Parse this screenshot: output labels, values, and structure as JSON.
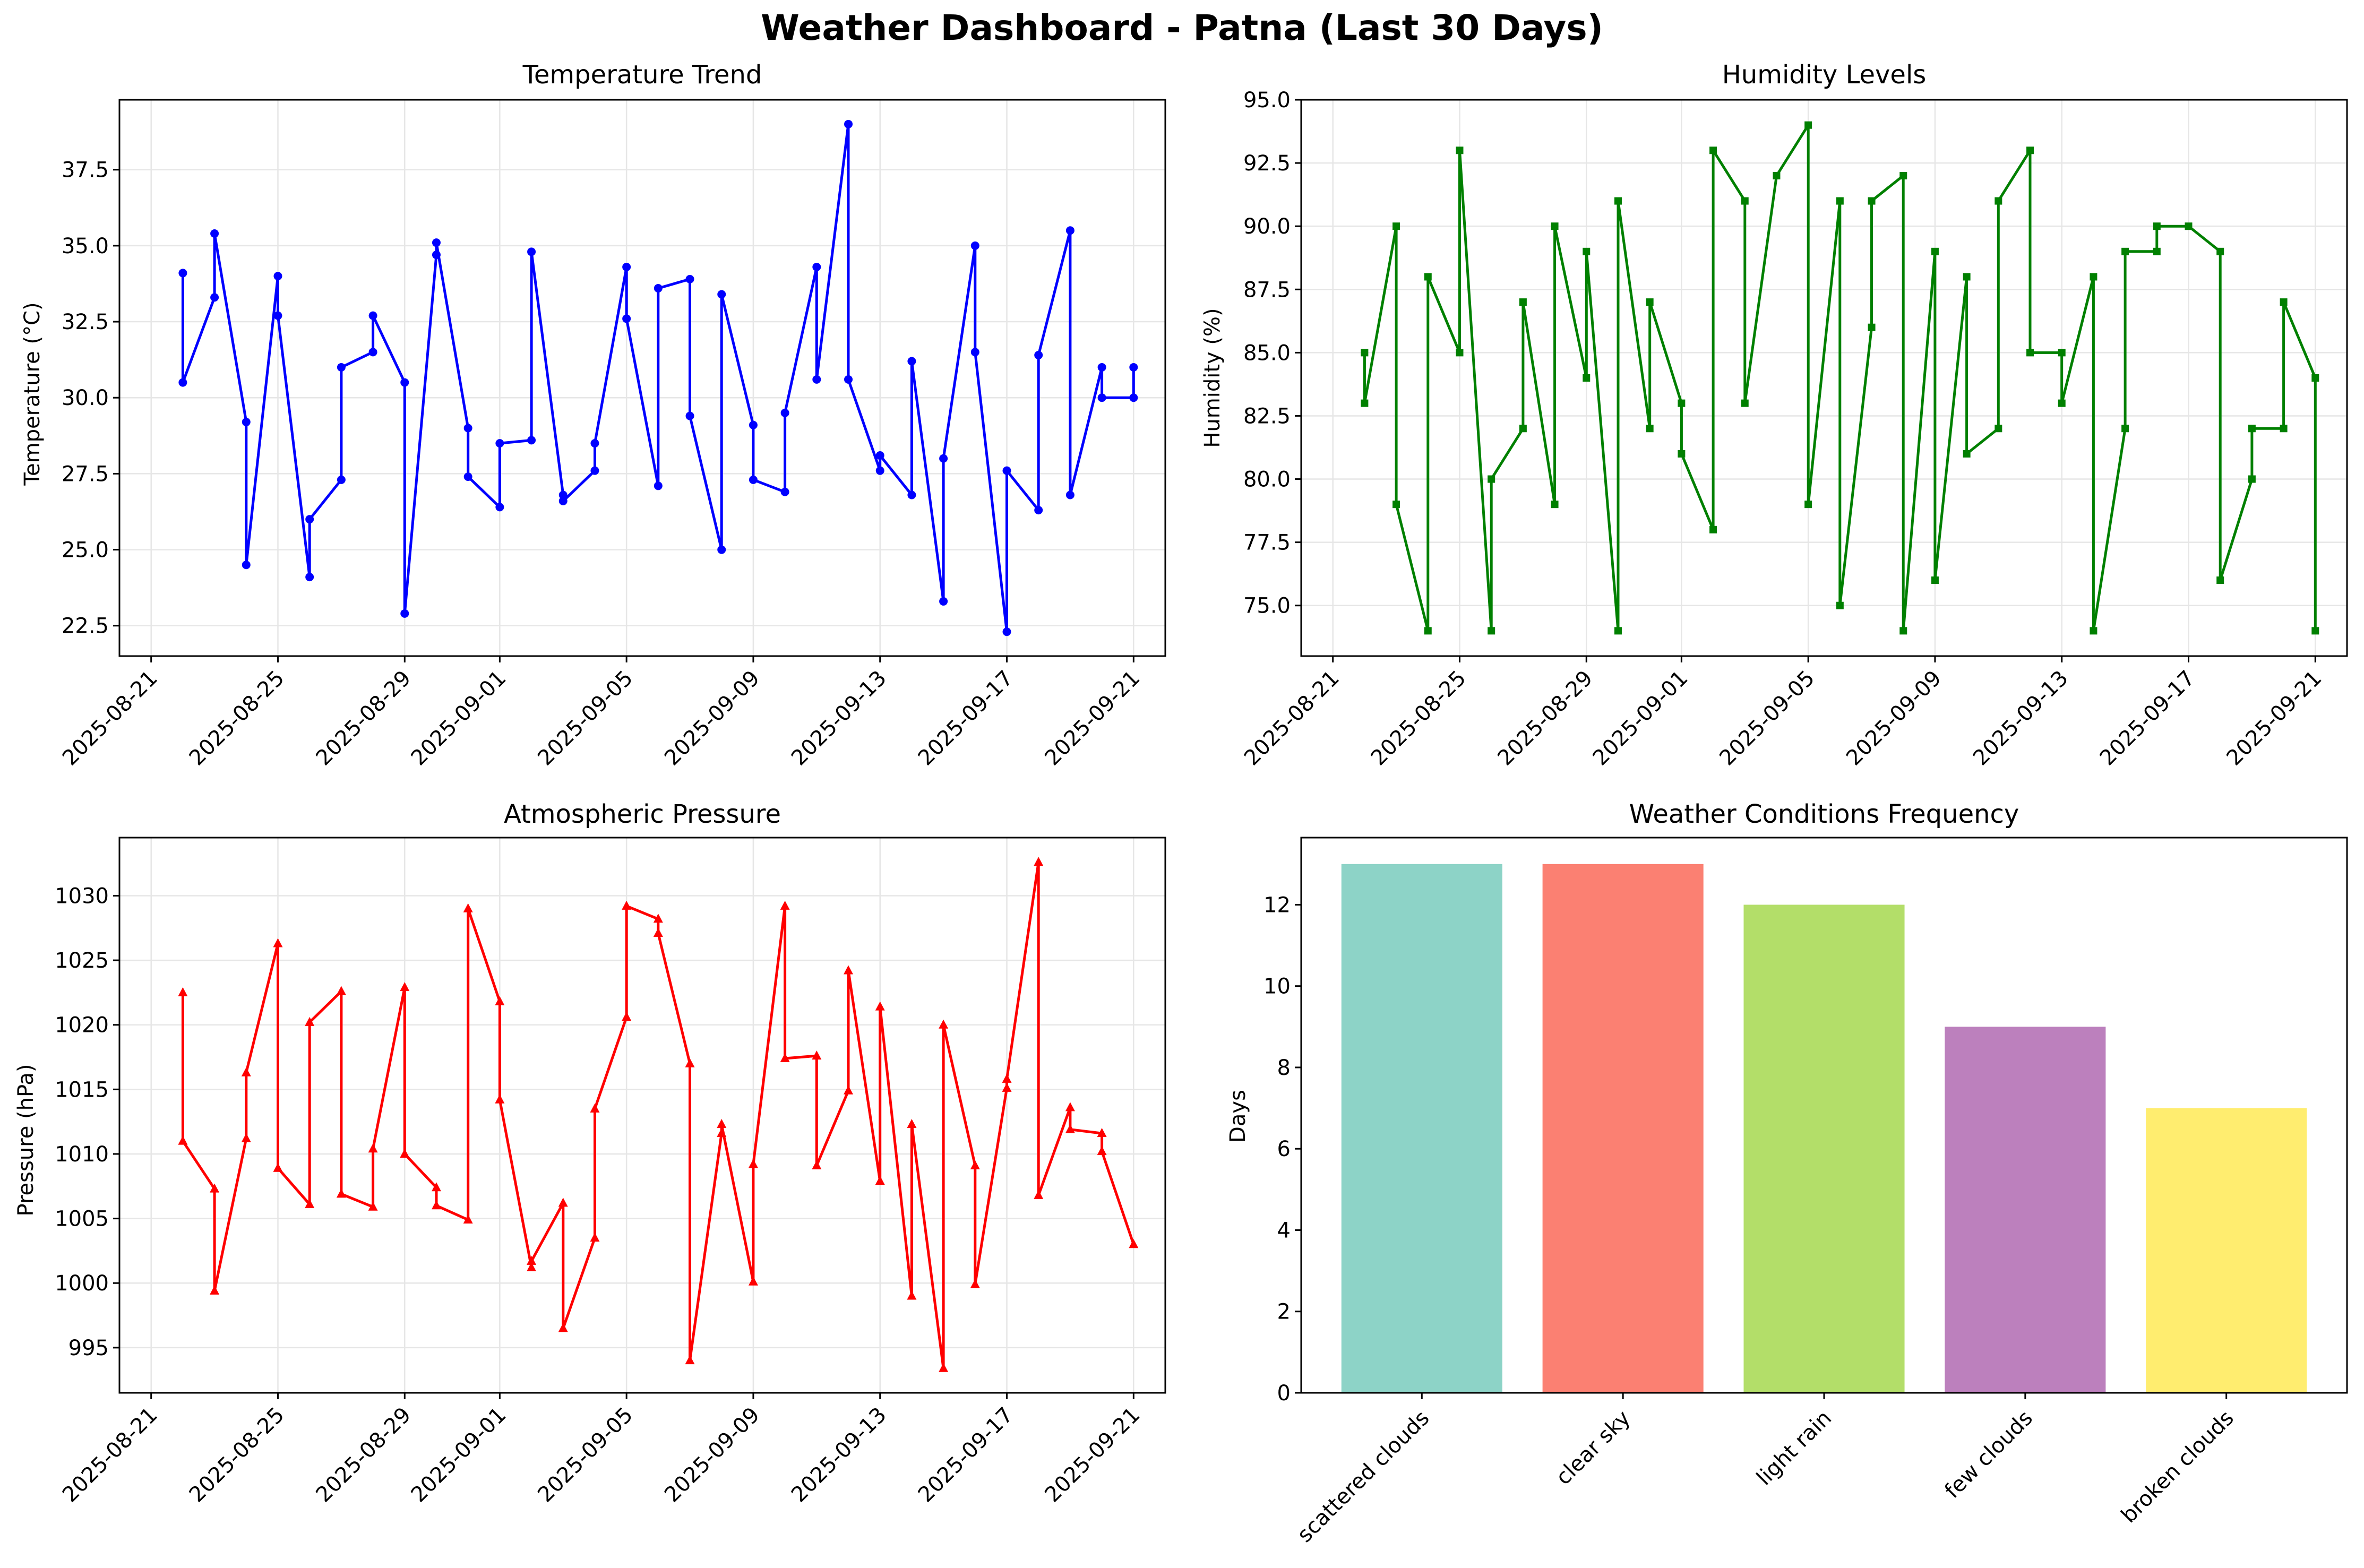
{
  "title": "Weather Dashboard - Patna (Last 30 Days)",
  "colors": {
    "temperature": "#0000ff",
    "humidity": "#008000",
    "pressure": "#ff0000",
    "bars": [
      "#8dd3c7",
      "#fb8072",
      "#b3de69",
      "#bc80bd",
      "#ffed6f"
    ],
    "grid": "#e6e6e6"
  },
  "chart_data": [
    {
      "type": "line",
      "title": "Temperature Trend",
      "xlabel": "",
      "ylabel": "Temperature (°C)",
      "marker": "circle",
      "grid": true,
      "xlim": [
        "2025-08-20",
        "2025-09-22"
      ],
      "ylim": [
        21.5,
        39.8
      ],
      "x_ticks": [
        "2025-08-21",
        "2025-08-25",
        "2025-08-29",
        "2025-09-01",
        "2025-09-05",
        "2025-09-09",
        "2025-09-13",
        "2025-09-17",
        "2025-09-21"
      ],
      "y_ticks": [
        22.5,
        25.0,
        27.5,
        30.0,
        32.5,
        35.0,
        37.5
      ],
      "y_tick_labels": [
        "22.5",
        "25.0",
        "27.5",
        "30.0",
        "32.5",
        "35.0",
        "37.5"
      ],
      "points": [
        [
          "2025-08-22",
          34.1
        ],
        [
          "2025-08-22",
          30.5
        ],
        [
          "2025-08-23",
          33.3
        ],
        [
          "2025-08-23",
          35.4
        ],
        [
          "2025-08-24",
          29.2
        ],
        [
          "2025-08-24",
          24.5
        ],
        [
          "2025-08-25",
          34.0
        ],
        [
          "2025-08-25",
          32.7
        ],
        [
          "2025-08-26",
          24.1
        ],
        [
          "2025-08-26",
          26.0
        ],
        [
          "2025-08-27",
          27.3
        ],
        [
          "2025-08-27",
          31.0
        ],
        [
          "2025-08-28",
          31.5
        ],
        [
          "2025-08-28",
          32.7
        ],
        [
          "2025-08-29",
          30.5
        ],
        [
          "2025-08-29",
          22.9
        ],
        [
          "2025-08-30",
          34.7
        ],
        [
          "2025-08-30",
          35.1
        ],
        [
          "2025-08-31",
          29.0
        ],
        [
          "2025-08-31",
          27.4
        ],
        [
          "2025-09-01",
          26.4
        ],
        [
          "2025-09-01",
          28.5
        ],
        [
          "2025-09-02",
          28.6
        ],
        [
          "2025-09-02",
          34.8
        ],
        [
          "2025-09-03",
          26.8
        ],
        [
          "2025-09-03",
          26.6
        ],
        [
          "2025-09-04",
          27.6
        ],
        [
          "2025-09-04",
          28.5
        ],
        [
          "2025-09-05",
          34.3
        ],
        [
          "2025-09-05",
          32.6
        ],
        [
          "2025-09-06",
          27.1
        ],
        [
          "2025-09-06",
          33.6
        ],
        [
          "2025-09-07",
          33.9
        ],
        [
          "2025-09-07",
          29.4
        ],
        [
          "2025-09-08",
          25.0
        ],
        [
          "2025-09-08",
          33.4
        ],
        [
          "2025-09-09",
          29.1
        ],
        [
          "2025-09-09",
          27.3
        ],
        [
          "2025-09-10",
          26.9
        ],
        [
          "2025-09-10",
          29.5
        ],
        [
          "2025-09-11",
          34.3
        ],
        [
          "2025-09-11",
          30.6
        ],
        [
          "2025-09-12",
          39.0
        ],
        [
          "2025-09-12",
          30.6
        ],
        [
          "2025-09-13",
          27.6
        ],
        [
          "2025-09-13",
          28.1
        ],
        [
          "2025-09-14",
          26.8
        ],
        [
          "2025-09-14",
          31.2
        ],
        [
          "2025-09-15",
          23.3
        ],
        [
          "2025-09-15",
          28.0
        ],
        [
          "2025-09-16",
          35.0
        ],
        [
          "2025-09-16",
          31.5
        ],
        [
          "2025-09-17",
          22.3
        ],
        [
          "2025-09-17",
          27.6
        ],
        [
          "2025-09-18",
          26.3
        ],
        [
          "2025-09-18",
          31.4
        ],
        [
          "2025-09-19",
          35.5
        ],
        [
          "2025-09-19",
          26.8
        ],
        [
          "2025-09-20",
          31.0
        ],
        [
          "2025-09-20",
          30.0
        ],
        [
          "2025-09-21",
          30.0
        ],
        [
          "2025-09-21",
          31.0
        ]
      ]
    },
    {
      "type": "line",
      "title": "Humidity Levels",
      "xlabel": "",
      "ylabel": "Humidity (%)",
      "marker": "square",
      "grid": true,
      "xlim": [
        "2025-08-20",
        "2025-09-22"
      ],
      "ylim": [
        73.0,
        95.0
      ],
      "x_ticks": [
        "2025-08-21",
        "2025-08-25",
        "2025-08-29",
        "2025-09-01",
        "2025-09-05",
        "2025-09-09",
        "2025-09-13",
        "2025-09-17",
        "2025-09-21"
      ],
      "y_ticks": [
        75.0,
        77.5,
        80.0,
        82.5,
        85.0,
        87.5,
        90.0,
        92.5,
        95.0
      ],
      "y_tick_labels": [
        "75.0",
        "77.5",
        "80.0",
        "82.5",
        "85.0",
        "87.5",
        "90.0",
        "92.5",
        "95.0"
      ],
      "points": [
        [
          "2025-08-22",
          85
        ],
        [
          "2025-08-22",
          83
        ],
        [
          "2025-08-23",
          90
        ],
        [
          "2025-08-23",
          79
        ],
        [
          "2025-08-24",
          74
        ],
        [
          "2025-08-24",
          88
        ],
        [
          "2025-08-25",
          85
        ],
        [
          "2025-08-25",
          93
        ],
        [
          "2025-08-26",
          74
        ],
        [
          "2025-08-26",
          80
        ],
        [
          "2025-08-27",
          82
        ],
        [
          "2025-08-27",
          87
        ],
        [
          "2025-08-28",
          79
        ],
        [
          "2025-08-28",
          90
        ],
        [
          "2025-08-29",
          84
        ],
        [
          "2025-08-29",
          89
        ],
        [
          "2025-08-30",
          74
        ],
        [
          "2025-08-30",
          91
        ],
        [
          "2025-08-31",
          82
        ],
        [
          "2025-08-31",
          87
        ],
        [
          "2025-09-01",
          83
        ],
        [
          "2025-09-01",
          81
        ],
        [
          "2025-09-02",
          78
        ],
        [
          "2025-09-02",
          93
        ],
        [
          "2025-09-03",
          91
        ],
        [
          "2025-09-03",
          83
        ],
        [
          "2025-09-04",
          92
        ],
        [
          "2025-09-05",
          94
        ],
        [
          "2025-09-05",
          79
        ],
        [
          "2025-09-06",
          91
        ],
        [
          "2025-09-06",
          75
        ],
        [
          "2025-09-07",
          86
        ],
        [
          "2025-09-07",
          91
        ],
        [
          "2025-09-08",
          92
        ],
        [
          "2025-09-08",
          74
        ],
        [
          "2025-09-09",
          89
        ],
        [
          "2025-09-09",
          76
        ],
        [
          "2025-09-10",
          88
        ],
        [
          "2025-09-10",
          81
        ],
        [
          "2025-09-11",
          82
        ],
        [
          "2025-09-11",
          91
        ],
        [
          "2025-09-12",
          93
        ],
        [
          "2025-09-12",
          85
        ],
        [
          "2025-09-13",
          85
        ],
        [
          "2025-09-13",
          83
        ],
        [
          "2025-09-14",
          88
        ],
        [
          "2025-09-14",
          74
        ],
        [
          "2025-09-15",
          82
        ],
        [
          "2025-09-15",
          89
        ],
        [
          "2025-09-16",
          89
        ],
        [
          "2025-09-16",
          90
        ],
        [
          "2025-09-17",
          90
        ],
        [
          "2025-09-18",
          89
        ],
        [
          "2025-09-18",
          76
        ],
        [
          "2025-09-19",
          80
        ],
        [
          "2025-09-19",
          82
        ],
        [
          "2025-09-20",
          82
        ],
        [
          "2025-09-20",
          87
        ],
        [
          "2025-09-21",
          84
        ],
        [
          "2025-09-21",
          74
        ]
      ]
    },
    {
      "type": "line",
      "title": "Atmospheric Pressure",
      "xlabel": "",
      "ylabel": "Pressure (hPa)",
      "marker": "triangle",
      "grid": true,
      "xlim": [
        "2025-08-20",
        "2025-09-22"
      ],
      "ylim": [
        991.5,
        1034.5
      ],
      "x_ticks": [
        "2025-08-21",
        "2025-08-25",
        "2025-08-29",
        "2025-09-01",
        "2025-09-05",
        "2025-09-09",
        "2025-09-13",
        "2025-09-17",
        "2025-09-21"
      ],
      "y_ticks": [
        995,
        1000,
        1005,
        1010,
        1015,
        1020,
        1025,
        1030
      ],
      "y_tick_labels": [
        "995",
        "1000",
        "1005",
        "1010",
        "1015",
        "1020",
        "1025",
        "1030"
      ],
      "points": [
        [
          "2025-08-22",
          1022.5
        ],
        [
          "2025-08-22",
          1011.0
        ],
        [
          "2025-08-23",
          1007.3
        ],
        [
          "2025-08-23",
          999.4
        ],
        [
          "2025-08-24",
          1011.2
        ],
        [
          "2025-08-24",
          1016.3
        ],
        [
          "2025-08-25",
          1026.3
        ],
        [
          "2025-08-25",
          1008.9
        ],
        [
          "2025-08-26",
          1006.1
        ],
        [
          "2025-08-26",
          1020.2
        ],
        [
          "2025-08-27",
          1022.6
        ],
        [
          "2025-08-27",
          1006.9
        ],
        [
          "2025-08-28",
          1005.9
        ],
        [
          "2025-08-28",
          1010.4
        ],
        [
          "2025-08-29",
          1022.9
        ],
        [
          "2025-08-29",
          1010.0
        ],
        [
          "2025-08-30",
          1007.4
        ],
        [
          "2025-08-30",
          1006.0
        ],
        [
          "2025-08-31",
          1004.9
        ],
        [
          "2025-08-31",
          1029.0
        ],
        [
          "2025-09-01",
          1021.8
        ],
        [
          "2025-09-01",
          1014.2
        ],
        [
          "2025-09-02",
          1001.2
        ],
        [
          "2025-09-02",
          1001.7
        ],
        [
          "2025-09-03",
          1006.2
        ],
        [
          "2025-09-03",
          996.5
        ],
        [
          "2025-09-04",
          1003.5
        ],
        [
          "2025-09-04",
          1013.5
        ],
        [
          "2025-09-05",
          1020.6
        ],
        [
          "2025-09-05",
          1029.2
        ],
        [
          "2025-09-06",
          1028.2
        ],
        [
          "2025-09-06",
          1027.1
        ],
        [
          "2025-09-07",
          1017.0
        ],
        [
          "2025-09-07",
          994.0
        ],
        [
          "2025-09-08",
          1011.6
        ],
        [
          "2025-09-08",
          1012.3
        ],
        [
          "2025-09-09",
          1000.1
        ],
        [
          "2025-09-09",
          1009.2
        ],
        [
          "2025-09-10",
          1029.2
        ],
        [
          "2025-09-10",
          1017.4
        ],
        [
          "2025-09-11",
          1017.6
        ],
        [
          "2025-09-11",
          1009.1
        ],
        [
          "2025-09-12",
          1014.9
        ],
        [
          "2025-09-12",
          1024.2
        ],
        [
          "2025-09-13",
          1007.9
        ],
        [
          "2025-09-13",
          1021.4
        ],
        [
          "2025-09-14",
          999.0
        ],
        [
          "2025-09-14",
          1012.3
        ],
        [
          "2025-09-15",
          993.4
        ],
        [
          "2025-09-15",
          1020.0
        ],
        [
          "2025-09-16",
          1009.1
        ],
        [
          "2025-09-16",
          999.9
        ],
        [
          "2025-09-17",
          1015.1
        ],
        [
          "2025-09-17",
          1015.8
        ],
        [
          "2025-09-18",
          1032.6
        ],
        [
          "2025-09-18",
          1006.8
        ],
        [
          "2025-09-19",
          1013.6
        ],
        [
          "2025-09-19",
          1011.9
        ],
        [
          "2025-09-20",
          1011.6
        ],
        [
          "2025-09-20",
          1010.2
        ],
        [
          "2025-09-21",
          1003.0
        ]
      ]
    },
    {
      "type": "bar",
      "title": "Weather Conditions Frequency",
      "xlabel": "",
      "ylabel": "Days",
      "grid": false,
      "categories": [
        "scattered clouds",
        "clear sky",
        "light rain",
        "few clouds",
        "broken clouds"
      ],
      "values": [
        13,
        13,
        12,
        9,
        7
      ],
      "ylim": [
        0,
        13.65
      ],
      "y_ticks": [
        0,
        2,
        4,
        6,
        8,
        10,
        12
      ],
      "y_tick_labels": [
        "0",
        "2",
        "4",
        "6",
        "8",
        "10",
        "12"
      ]
    }
  ]
}
